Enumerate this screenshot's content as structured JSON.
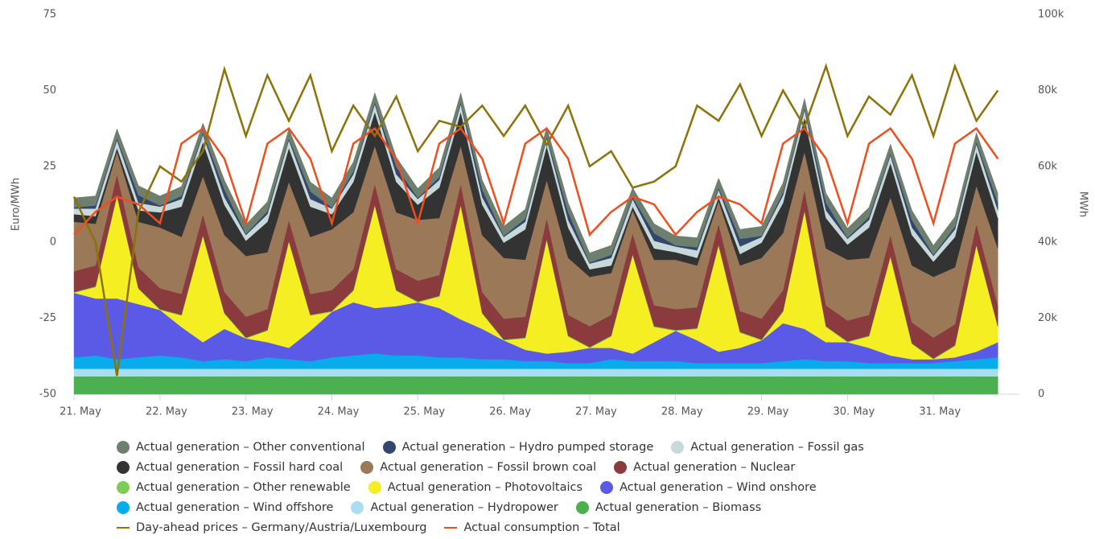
{
  "chart_data": {
    "type": "area",
    "y_label": "Euro/MWh",
    "y2_label": "MWh",
    "ylim": [
      -50,
      75
    ],
    "yticks": [
      -50,
      -25,
      0,
      25,
      50,
      75
    ],
    "y2lim": [
      0,
      100000
    ],
    "y2ticks": [
      0,
      {
        "value": 20000,
        "label": "20k"
      },
      {
        "value": 40000,
        "label": "40k"
      },
      {
        "value": 60000,
        "label": "60k"
      },
      {
        "value": 80000,
        "label": "80k"
      },
      {
        "value": 100000,
        "label": "100k"
      }
    ],
    "categories": [
      "21. May",
      null,
      null,
      null,
      "22. May",
      null,
      null,
      null,
      "23. May",
      null,
      null,
      null,
      "24. May",
      null,
      null,
      null,
      "25. May",
      null,
      null,
      null,
      "26. May",
      null,
      null,
      null,
      "27. May",
      null,
      null,
      null,
      "28. May",
      null,
      null,
      null,
      "29. May",
      null,
      null,
      null,
      "30. May",
      null,
      null,
      null,
      "31. May",
      null,
      null,
      null
    ],
    "series": [
      {
        "name": "Actual generation – Other conventional",
        "type": "area",
        "axis": "y2",
        "color": "#6f7f6e",
        "values": [
          2500,
          2500,
          2500,
          2500,
          2500,
          2500,
          2500,
          2500,
          2500,
          2500,
          2500,
          2500,
          2500,
          2500,
          2500,
          2500,
          2500,
          2500,
          2500,
          2500,
          2500,
          2500,
          2500,
          2500,
          2500,
          2500,
          2500,
          2500,
          2500,
          2500,
          2500,
          2500,
          2500,
          2500,
          2500,
          2500,
          2500,
          2500,
          2500,
          2500,
          2500,
          2500,
          2500,
          2500
        ]
      },
      {
        "name": "Actual generation – Hydro pumped storage",
        "type": "area",
        "axis": "y2",
        "color": "#33466e",
        "values": [
          300,
          800,
          500,
          2000,
          300,
          800,
          500,
          2000,
          300,
          800,
          500,
          2000,
          300,
          800,
          500,
          2000,
          300,
          800,
          500,
          2000,
          300,
          800,
          500,
          2000,
          300,
          800,
          500,
          2000,
          300,
          800,
          500,
          2000,
          300,
          800,
          500,
          2000,
          300,
          800,
          500,
          2000,
          300,
          800,
          500,
          2000
        ]
      },
      {
        "name": "Actual generation – Fossil gas",
        "type": "area",
        "axis": "y2",
        "color": "#c7d9d9",
        "values": [
          1500,
          2000,
          2000,
          2000,
          1500,
          2000,
          2000,
          2000,
          1500,
          2000,
          2000,
          2000,
          1500,
          2000,
          2000,
          2000,
          1500,
          2000,
          2000,
          2000,
          1500,
          2000,
          2000,
          2000,
          1500,
          2000,
          2000,
          2000,
          1500,
          2000,
          2000,
          2000,
          1500,
          2000,
          2000,
          2000,
          1500,
          2000,
          2000,
          2000,
          1500,
          2000,
          2000,
          2000
        ]
      },
      {
        "name": "Actual generation – Fossil hard coal",
        "type": "area",
        "axis": "y2",
        "color": "#333333",
        "values": [
          2000,
          2000,
          1000,
          3000,
          4000,
          8000,
          9000,
          8000,
          4000,
          8000,
          9000,
          8000,
          4000,
          8000,
          9000,
          8000,
          4000,
          8000,
          9000,
          8000,
          4000,
          8000,
          9000,
          8000,
          2000,
          2000,
          1000,
          3000,
          2000,
          2000,
          1000,
          3000,
          4000,
          8000,
          9000,
          8000,
          4000,
          8000,
          9000,
          8000,
          4000,
          8000,
          9000,
          8000
        ]
      },
      {
        "name": "Actual generation – Fossil brown coal",
        "type": "area",
        "axis": "y2",
        "color": "#9a7858",
        "values": [
          13000,
          11000,
          6000,
          12000,
          16000,
          15000,
          10000,
          15000,
          16000,
          15000,
          10000,
          15000,
          16000,
          15000,
          10000,
          15000,
          16000,
          15000,
          10000,
          15000,
          16000,
          15000,
          10000,
          15000,
          13000,
          11000,
          6000,
          12000,
          13000,
          11000,
          6000,
          12000,
          16000,
          15000,
          10000,
          15000,
          16000,
          15000,
          10000,
          15000,
          16000,
          15000,
          10000,
          15000
        ]
      },
      {
        "name": "Actual generation – Nuclear",
        "type": "area",
        "axis": "y2",
        "color": "#8b3b3e",
        "values": [
          5500,
          5500,
          5500,
          5500,
          5500,
          5500,
          5500,
          5500,
          5500,
          5500,
          5500,
          5500,
          5500,
          5500,
          5500,
          5500,
          5500,
          5500,
          5500,
          5500,
          5500,
          5500,
          5500,
          5500,
          5500,
          5500,
          5500,
          5500,
          5500,
          5500,
          5500,
          5500,
          5500,
          5500,
          5500,
          5500,
          5500,
          5500,
          5500,
          5500,
          5500,
          5500,
          5500,
          5500
        ]
      },
      {
        "name": "Actual generation – Other renewable",
        "type": "area",
        "axis": "y2",
        "color": "#7ccd55",
        "values": [
          200,
          200,
          200,
          200,
          200,
          200,
          200,
          200,
          200,
          200,
          200,
          200,
          200,
          200,
          200,
          200,
          200,
          200,
          200,
          200,
          200,
          200,
          200,
          200,
          200,
          200,
          200,
          200,
          200,
          200,
          200,
          200,
          200,
          200,
          200,
          200,
          200,
          200,
          200,
          200,
          200,
          200,
          200,
          200
        ]
      },
      {
        "name": "Actual generation – Photovoltaics",
        "type": "area",
        "axis": "y2",
        "color": "#f5ee22",
        "values": [
          0,
          3000,
          27000,
          4000,
          0,
          3000,
          28000,
          4000,
          0,
          3000,
          28000,
          4000,
          0,
          3000,
          27000,
          4000,
          0,
          3000,
          30000,
          4000,
          0,
          3000,
          30000,
          4000,
          0,
          3000,
          26000,
          4000,
          0,
          3000,
          28000,
          4000,
          0,
          3000,
          31000,
          4000,
          0,
          3000,
          26000,
          4000,
          0,
          3000,
          28000,
          4000
        ]
      },
      {
        "name": "Actual generation – Wind onshore",
        "type": "area",
        "axis": "y2",
        "color": "#5a5ae6",
        "values": [
          17000,
          15000,
          16000,
          14000,
          12000,
          8000,
          5000,
          8000,
          6000,
          4000,
          3000,
          8000,
          12000,
          14000,
          12000,
          13000,
          14000,
          13000,
          10000,
          8000,
          5000,
          3000,
          2000,
          3000,
          4000,
          3000,
          2000,
          5000,
          8000,
          6000,
          3000,
          4000,
          6000,
          10000,
          8000,
          5000,
          5000,
          4000,
          2000,
          1000,
          1000,
          1000,
          2000,
          4000
        ]
      },
      {
        "name": "Actual generation – Wind offshore",
        "type": "area",
        "axis": "y2",
        "color": "#08acea",
        "values": [
          3000,
          3500,
          2500,
          3000,
          3500,
          3000,
          2000,
          2500,
          2000,
          3000,
          2500,
          2000,
          3000,
          3500,
          4000,
          3500,
          3500,
          3000,
          3000,
          2500,
          2500,
          2000,
          2000,
          1500,
          1500,
          2500,
          2000,
          2000,
          2000,
          1500,
          1500,
          1500,
          1500,
          2000,
          2500,
          2000,
          2000,
          1500,
          1500,
          1500,
          1500,
          2000,
          2500,
          3000
        ]
      },
      {
        "name": "Actual generation – Hydropower",
        "type": "area",
        "axis": "y2",
        "color": "#a9def2",
        "values": [
          2000,
          2000,
          2000,
          2000,
          2000,
          2000,
          2000,
          2000,
          2000,
          2000,
          2000,
          2000,
          2000,
          2000,
          2000,
          2000,
          2000,
          2000,
          2000,
          2000,
          2000,
          2000,
          2000,
          2000,
          2000,
          2000,
          2000,
          2000,
          2000,
          2000,
          2000,
          2000,
          2000,
          2000,
          2000,
          2000,
          2000,
          2000,
          2000,
          2000,
          2000,
          2000,
          2000,
          2000
        ]
      },
      {
        "name": "Actual generation – Biomass",
        "type": "area",
        "axis": "y2",
        "color": "#4caf50",
        "values": [
          4700,
          4700,
          4700,
          4700,
          4700,
          4700,
          4700,
          4700,
          4700,
          4700,
          4700,
          4700,
          4700,
          4700,
          4700,
          4700,
          4700,
          4700,
          4700,
          4700,
          4700,
          4700,
          4700,
          4700,
          4700,
          4700,
          4700,
          4700,
          4700,
          4700,
          4700,
          4700,
          4700,
          4700,
          4700,
          4700,
          4700,
          4700,
          4700,
          4700,
          4700,
          4700,
          4700,
          4700
        ]
      },
      {
        "name": "Day-ahead prices – Germany/Austria/Luxembourg",
        "type": "line",
        "axis": "y",
        "color": "#8c7208",
        "values": [
          15,
          0,
          -44,
          10,
          25,
          20,
          30,
          57,
          35,
          55,
          40,
          55,
          30,
          45,
          35,
          48,
          30,
          40,
          38,
          45,
          35,
          45,
          32,
          45,
          25,
          30,
          18,
          20,
          25,
          45,
          40,
          52,
          35,
          50,
          38,
          58,
          35,
          48,
          42,
          55,
          35,
          58,
          40,
          50
        ]
      },
      {
        "name": "Actual consumption – Total",
        "type": "line",
        "axis": "y2",
        "color": "#f04e1e",
        "values": [
          42000,
          48000,
          52000,
          50000,
          45000,
          66000,
          70000,
          62000,
          45000,
          66000,
          70000,
          62000,
          45000,
          66000,
          70000,
          62000,
          45000,
          66000,
          70000,
          62000,
          45000,
          66000,
          70000,
          62000,
          42000,
          48000,
          52000,
          50000,
          42000,
          48000,
          52000,
          50000,
          45000,
          66000,
          70000,
          62000,
          45000,
          66000,
          70000,
          62000,
          45000,
          66000,
          70000,
          62000
        ]
      }
    ]
  }
}
